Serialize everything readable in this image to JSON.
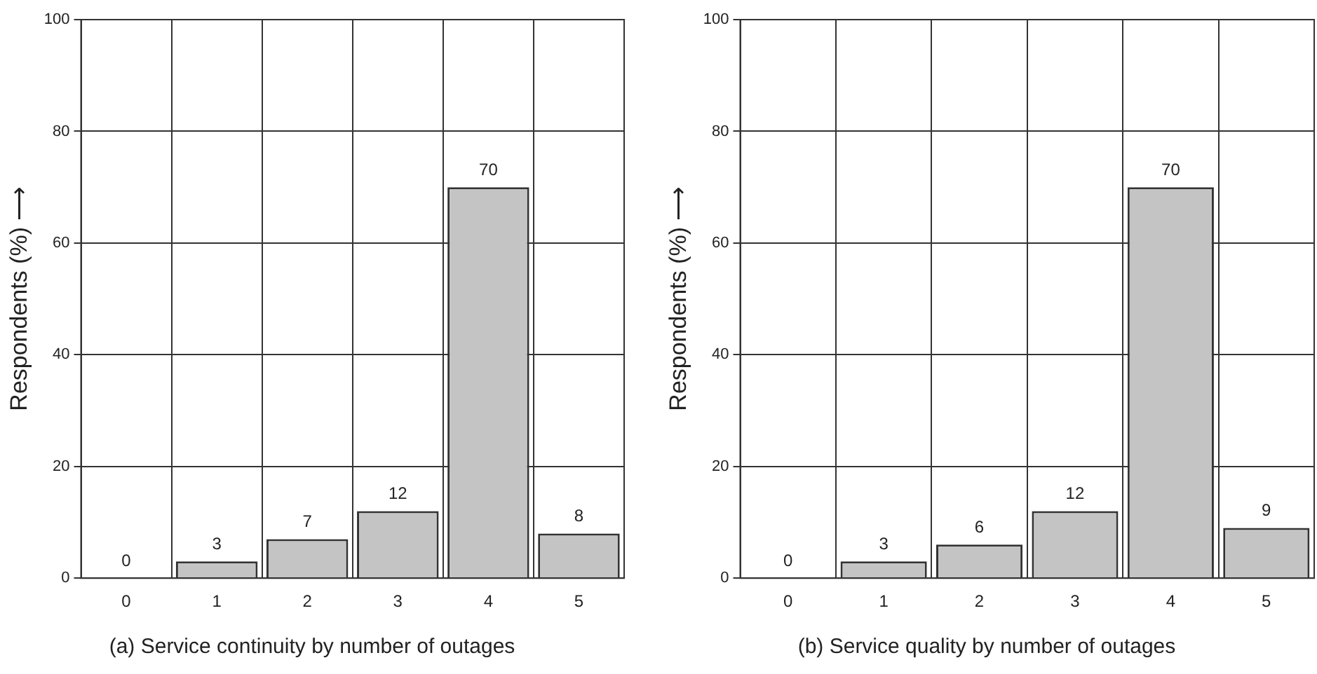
{
  "chart_data": [
    {
      "type": "bar",
      "title": "(a) Service continuity by number of outages",
      "ylabel": "Respondents (%) ⟶",
      "categories": [
        "0",
        "1",
        "2",
        "3",
        "4",
        "5"
      ],
      "values": [
        0,
        3,
        7,
        12,
        70,
        8
      ],
      "color": "#c4c4c4",
      "ylim": [
        0,
        100
      ],
      "yticks": [
        0,
        20,
        40,
        60,
        80,
        100
      ],
      "grid": true,
      "data_labels": true,
      "legend": false
    },
    {
      "type": "bar",
      "title": "(b) Service quality by number of outages",
      "ylabel": "Respondents (%) ⟶",
      "categories": [
        "0",
        "1",
        "2",
        "3",
        "4",
        "5"
      ],
      "values": [
        0,
        3,
        6,
        12,
        70,
        9
      ],
      "color": "#c4c4c4",
      "ylim": [
        0,
        100
      ],
      "yticks": [
        0,
        20,
        40,
        60,
        80,
        100
      ],
      "grid": true,
      "data_labels": true,
      "legend": false
    }
  ]
}
